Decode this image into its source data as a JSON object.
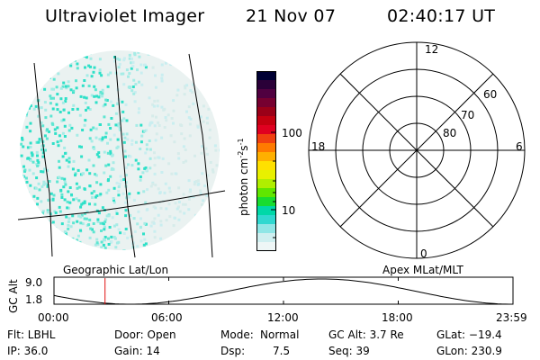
{
  "header": {
    "title": "Ultraviolet Imager",
    "date": "21 Nov 07",
    "time": "02:40:17 UT"
  },
  "image_panel": {
    "caption": "Geographic Lat/Lon",
    "dot_colors": [
      "#2fe0c8",
      "#a6ece6",
      "#d6ecea",
      "#5fe6d2",
      "#c9eef0"
    ]
  },
  "colorbar": {
    "label_main": "photon cm",
    "label_exp": "-2",
    "label_s": "s",
    "label_exp2": "-1",
    "tick_100": "100",
    "tick_10": "10",
    "colors": [
      "#000033",
      "#2a0038",
      "#500040",
      "#760030",
      "#9a0018",
      "#c40010",
      "#e00020",
      "#f04010",
      "#ff7a00",
      "#ffb000",
      "#ffe000",
      "#e8f000",
      "#b0ee00",
      "#60e600",
      "#18dc30",
      "#00d8a8",
      "#30d8d0",
      "#90e6e6",
      "#cfeff0",
      "#eef6f6"
    ]
  },
  "polar_panel": {
    "caption": "Apex MLat/MLT",
    "mlt_top": "12",
    "mlt_left": "18",
    "mlt_right": "6",
    "mlt_bottom": "0",
    "lat_60": "60",
    "lat_70": "70",
    "lat_80": "80"
  },
  "altitude_plot": {
    "ylabel": "GC Alt",
    "y_top": "9.0",
    "y_bottom": "1.8",
    "x_ticks": [
      "00:00",
      "06:00",
      "12:00",
      "18:00",
      "23:59"
    ],
    "marker_hours": 2.67,
    "marker_color": "#e01010"
  },
  "status": {
    "flt": "Flt: LBHL",
    "ip": "IP: 36.0",
    "door": "Door: Open",
    "gain": "Gain: 14",
    "mode_label": "Mode:",
    "mode_value": "Normal",
    "dsp_label": "Dsp:",
    "dsp_value": "7.5",
    "gc_alt": "GC Alt: 3.7 Re",
    "seq": "Seq: 39",
    "glat": "GLat: −19.4",
    "glon": "GLon: 230.9"
  }
}
